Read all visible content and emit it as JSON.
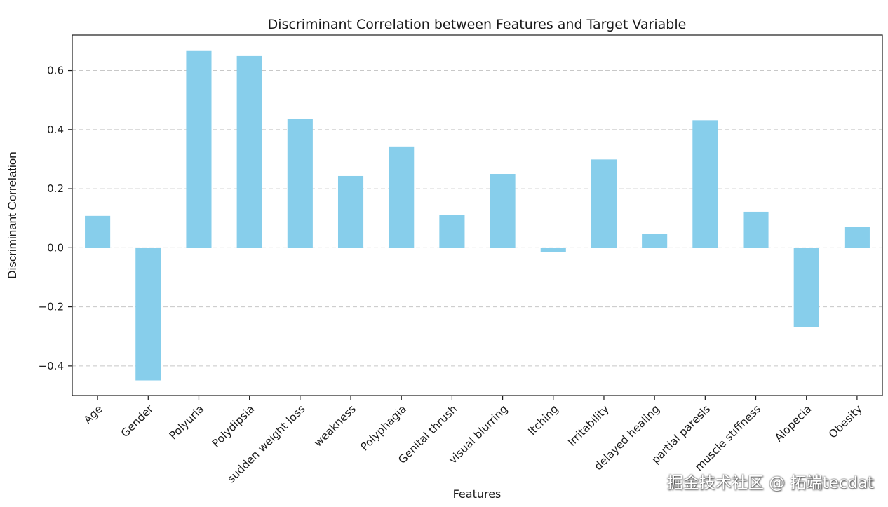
{
  "chart_data": {
    "type": "bar",
    "title": "Discriminant Correlation between Features and Target Variable",
    "xlabel": "Features",
    "ylabel": "Discriminant Correlation",
    "categories": [
      "Age",
      "Gender",
      "Polyuria",
      "Polydipsia",
      "sudden weight loss",
      "weakness",
      "Polyphagia",
      "Genital thrush",
      "visual blurring",
      "Itching",
      "Irritability",
      "delayed healing",
      "partial paresis",
      "muscle stiffness",
      "Alopecia",
      "Obesity"
    ],
    "values": [
      0.108,
      -0.449,
      0.666,
      0.649,
      0.437,
      0.243,
      0.343,
      0.11,
      0.25,
      -0.014,
      0.299,
      0.046,
      0.432,
      0.122,
      -0.268,
      0.072
    ],
    "ylim": [
      -0.5,
      0.72
    ],
    "yticks": [
      -0.4,
      -0.2,
      0.0,
      0.2,
      0.4,
      0.6
    ],
    "ytick_labels": [
      "−0.4",
      "−0.2",
      "0.0",
      "0.2",
      "0.4",
      "0.6"
    ],
    "grid": "y-dashed",
    "bar_color": "#87ceeb"
  },
  "watermark": "掘金技术社区 @ 拓端tecdat"
}
